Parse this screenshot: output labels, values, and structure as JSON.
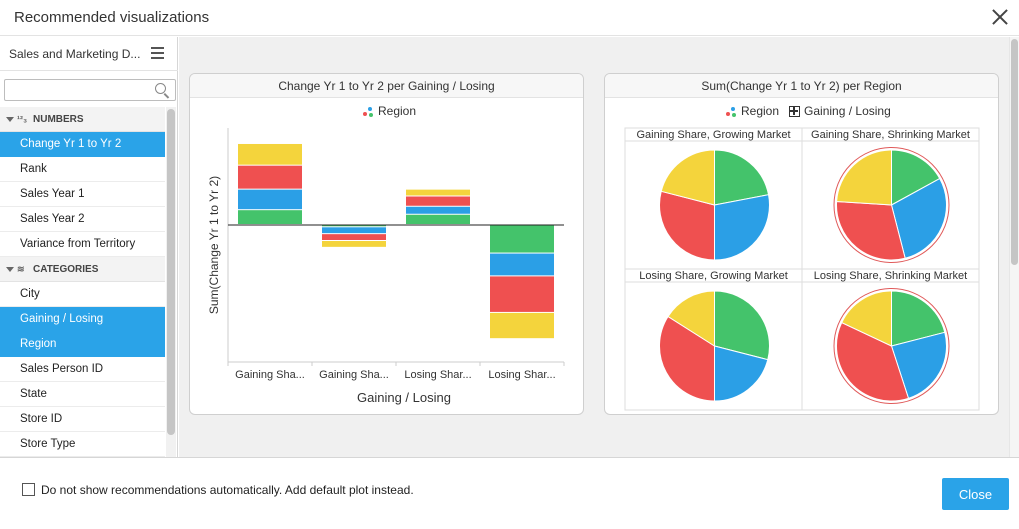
{
  "window": {
    "title": "Recommended visualizations"
  },
  "sidebar": {
    "dataset_name": "Sales and Marketing D...",
    "search": {
      "placeholder": "",
      "value": ""
    },
    "sections": [
      {
        "name": "NUMBERS",
        "icon": "numbers-icon",
        "icon_text": "1 2 3",
        "items": [
          {
            "label": "Change Yr 1 to Yr 2",
            "selected": true
          },
          {
            "label": "Rank",
            "selected": false
          },
          {
            "label": "Sales Year 1",
            "selected": false
          },
          {
            "label": "Sales Year 2",
            "selected": false
          },
          {
            "label": "Variance from Territory",
            "selected": false
          }
        ]
      },
      {
        "name": "CATEGORIES",
        "icon": "layers-icon",
        "items": [
          {
            "label": "City",
            "selected": false
          },
          {
            "label": "Gaining / Losing",
            "selected": true
          },
          {
            "label": "Region",
            "selected": true
          },
          {
            "label": "Sales Person ID",
            "selected": false
          },
          {
            "label": "State",
            "selected": false
          },
          {
            "label": "Store ID",
            "selected": false
          },
          {
            "label": "Store Type",
            "selected": false
          }
        ]
      }
    ]
  },
  "colors": {
    "accent": "#2aa3e8",
    "green": "#44c36b",
    "blue": "#2b9fe6",
    "red": "#ef5050",
    "yellow": "#f4d43c"
  },
  "chart_data": [
    {
      "type": "bar",
      "stacked": true,
      "title": "Change Yr 1 to Yr 2 per Gaining / Losing",
      "legend": {
        "label": "Region",
        "placement": "top-center"
      },
      "xlabel": "Gaining / Losing",
      "ylabel": "Sum(Change Yr 1 to Yr 2)",
      "categories": [
        "Gaining Sha...",
        "Gaining Sha...",
        "Losing Shar...",
        "Losing Shar..."
      ],
      "ylim": [
        -12,
        8.5
      ],
      "series": [
        {
          "color": "#44c36b",
          "values": [
            1.3,
            -0.2,
            0.9,
            -2.5
          ]
        },
        {
          "color": "#2b9fe6",
          "values": [
            1.8,
            -0.6,
            0.7,
            -2.0
          ]
        },
        {
          "color": "#ef5050",
          "values": [
            2.1,
            -0.6,
            0.9,
            -3.2
          ]
        },
        {
          "color": "#f4d43c",
          "values": [
            1.9,
            -0.6,
            0.6,
            -2.3
          ]
        }
      ]
    },
    {
      "type": "pie",
      "title": "Sum(Change Yr 1 to Yr 2) per Region",
      "legend": [
        {
          "label": "Region"
        },
        {
          "label": "Gaining / Losing"
        }
      ],
      "panels": [
        {
          "label": "Gaining Share, Growing Market",
          "outline": false,
          "slices": [
            {
              "color": "#44c36b",
              "value": 22
            },
            {
              "color": "#2b9fe6",
              "value": 28
            },
            {
              "color": "#ef5050",
              "value": 29
            },
            {
              "color": "#f4d43c",
              "value": 21
            }
          ]
        },
        {
          "label": "Gaining Share, Shrinking Market",
          "outline": true,
          "slices": [
            {
              "color": "#44c36b",
              "value": 17
            },
            {
              "color": "#2b9fe6",
              "value": 29
            },
            {
              "color": "#ef5050",
              "value": 30
            },
            {
              "color": "#f4d43c",
              "value": 24
            }
          ]
        },
        {
          "label": "Losing Share, Growing Market",
          "outline": false,
          "slices": [
            {
              "color": "#44c36b",
              "value": 29
            },
            {
              "color": "#2b9fe6",
              "value": 21
            },
            {
              "color": "#ef5050",
              "value": 34
            },
            {
              "color": "#f4d43c",
              "value": 16
            }
          ]
        },
        {
          "label": "Losing Share, Shrinking Market",
          "outline": true,
          "slices": [
            {
              "color": "#44c36b",
              "value": 21
            },
            {
              "color": "#2b9fe6",
              "value": 24
            },
            {
              "color": "#ef5050",
              "value": 37
            },
            {
              "color": "#f4d43c",
              "value": 18
            }
          ]
        }
      ]
    }
  ],
  "footer": {
    "checkbox_label": "Do not show recommendations automatically. Add default plot instead.",
    "checkbox_checked": false,
    "close_label": "Close"
  }
}
